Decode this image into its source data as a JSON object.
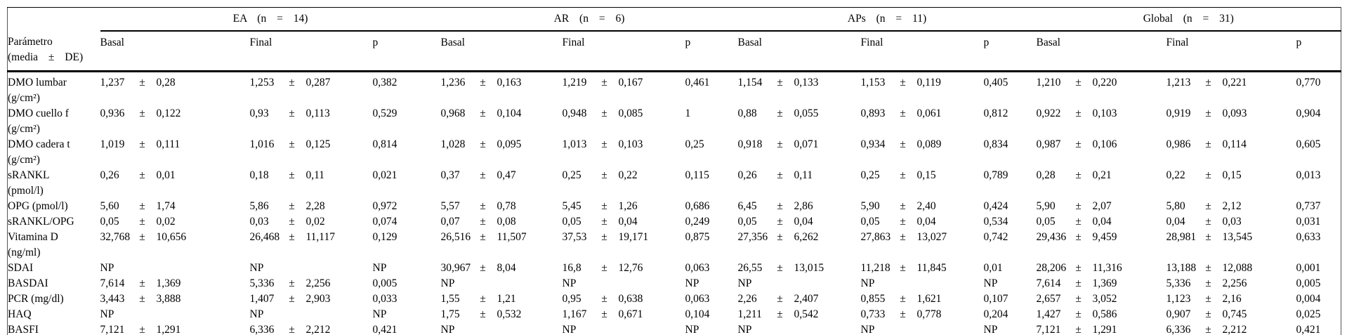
{
  "table": {
    "pm": "±",
    "param_header": {
      "line1": "Parámetro",
      "line2": "(media ± DE)"
    },
    "groups": [
      {
        "label": "EA (n = 14)"
      },
      {
        "label": "AR (n = 6)"
      },
      {
        "label": "APs (n = 11)"
      },
      {
        "label": "Global (n = 31)"
      }
    ],
    "sub_headers": [
      "Basal",
      "Final",
      "p"
    ],
    "rows": [
      {
        "param": "DMO lumbar",
        "unit": "(g/cm²)",
        "groups": [
          {
            "basal": [
              "1,237",
              "0,28"
            ],
            "final": [
              "1,253",
              "0,287"
            ],
            "p": "0,382"
          },
          {
            "basal": [
              "1,236",
              "0,163"
            ],
            "final": [
              "1,219",
              "0,167"
            ],
            "p": "0,461"
          },
          {
            "basal": [
              "1,154",
              "0,133"
            ],
            "final": [
              "1,153",
              "0,119"
            ],
            "p": "0,405"
          },
          {
            "basal": [
              "1,210",
              "0,220"
            ],
            "final": [
              "1,213",
              "0,221"
            ],
            "p": "0,770"
          }
        ]
      },
      {
        "param": "DMO cuello f",
        "unit": "(g/cm²)",
        "groups": [
          {
            "basal": [
              "0,936",
              "0,122"
            ],
            "final": [
              "0,93",
              "0,113"
            ],
            "p": "0,529"
          },
          {
            "basal": [
              "0,968",
              "0,104"
            ],
            "final": [
              "0,948",
              "0,085"
            ],
            "p": "1"
          },
          {
            "basal": [
              "0,88",
              "0,055"
            ],
            "final": [
              "0,893",
              "0,061"
            ],
            "p": "0,812"
          },
          {
            "basal": [
              "0,922",
              "0,103"
            ],
            "final": [
              "0,919",
              "0,093"
            ],
            "p": "0,904"
          }
        ]
      },
      {
        "param": "DMO cadera t",
        "unit": "(g/cm²)",
        "groups": [
          {
            "basal": [
              "1,019",
              "0,111"
            ],
            "final": [
              "1,016",
              "0,125"
            ],
            "p": "0,814"
          },
          {
            "basal": [
              "1,028",
              "0,095"
            ],
            "final": [
              "1,013",
              "0,103"
            ],
            "p": "0,25"
          },
          {
            "basal": [
              "0,918",
              "0,071"
            ],
            "final": [
              "0,934",
              "0,089"
            ],
            "p": "0,834"
          },
          {
            "basal": [
              "0,987",
              "0,106"
            ],
            "final": [
              "0,986",
              "0,114"
            ],
            "p": "0,605"
          }
        ]
      },
      {
        "param": "sRANKL",
        "unit": "(pmol/l)",
        "groups": [
          {
            "basal": [
              "0,26",
              "0,01"
            ],
            "final": [
              "0,18",
              "0,11"
            ],
            "p": "0,021"
          },
          {
            "basal": [
              "0,37",
              "0,47"
            ],
            "final": [
              "0,25",
              "0,22"
            ],
            "p": "0,115"
          },
          {
            "basal": [
              "0,26",
              "0,11"
            ],
            "final": [
              "0,25",
              "0,15"
            ],
            "p": "0,789"
          },
          {
            "basal": [
              "0,28",
              "0,21"
            ],
            "final": [
              "0,22",
              "0,15"
            ],
            "p": "0,013"
          }
        ]
      },
      {
        "param": "OPG (pmol/l)",
        "unit": "",
        "groups": [
          {
            "basal": [
              "5,60",
              "1,74"
            ],
            "final": [
              "5,86",
              "2,28"
            ],
            "p": "0,972"
          },
          {
            "basal": [
              "5,57",
              "0,78"
            ],
            "final": [
              "5,45",
              "1,26"
            ],
            "p": "0,686"
          },
          {
            "basal": [
              "6,45",
              "2,86"
            ],
            "final": [
              "5,90",
              "2,40"
            ],
            "p": "0,424"
          },
          {
            "basal": [
              "5,90",
              "2,07"
            ],
            "final": [
              "5,80",
              "2,12"
            ],
            "p": "0,737"
          }
        ]
      },
      {
        "param": "sRANKL/OPG",
        "unit": "",
        "groups": [
          {
            "basal": [
              "0,05",
              "0,02"
            ],
            "final": [
              "0,03",
              "0,02"
            ],
            "p": "0,074"
          },
          {
            "basal": [
              "0,07",
              "0,08"
            ],
            "final": [
              "0,05",
              "0,04"
            ],
            "p": "0,249"
          },
          {
            "basal": [
              "0,05",
              "0,04"
            ],
            "final": [
              "0,05",
              "0,04"
            ],
            "p": "0,534"
          },
          {
            "basal": [
              "0,05",
              "0,04"
            ],
            "final": [
              "0,04",
              "0,03"
            ],
            "p": "0,031"
          }
        ]
      },
      {
        "param": "Vitamina D",
        "unit": "(ng/ml)",
        "groups": [
          {
            "basal": [
              "32,768",
              "10,656"
            ],
            "final": [
              "26,468",
              "11,117"
            ],
            "p": "0,129"
          },
          {
            "basal": [
              "26,516",
              "11,507"
            ],
            "final": [
              "37,53",
              "19,171"
            ],
            "p": "0,875"
          },
          {
            "basal": [
              "27,356",
              "6,262"
            ],
            "final": [
              "27,863",
              "13,027"
            ],
            "p": "0,742"
          },
          {
            "basal": [
              "29,436",
              "9,459"
            ],
            "final": [
              "28,981",
              "13,545"
            ],
            "p": "0,633"
          }
        ]
      },
      {
        "param": "SDAI",
        "unit": "",
        "groups": [
          {
            "basal": [
              "NP"
            ],
            "final": [
              "NP"
            ],
            "p": "NP"
          },
          {
            "basal": [
              "30,967",
              "8,04"
            ],
            "final": [
              "16,8",
              "12,76"
            ],
            "p": "0,063"
          },
          {
            "basal": [
              "26,55",
              "13,015"
            ],
            "final": [
              "11,218",
              "11,845"
            ],
            "p": "0,01"
          },
          {
            "basal": [
              "28,206",
              "11,316"
            ],
            "final": [
              "13,188",
              "12,088"
            ],
            "p": "0,001"
          }
        ]
      },
      {
        "param": "BASDAI",
        "unit": "",
        "groups": [
          {
            "basal": [
              "7,614",
              "1,369"
            ],
            "final": [
              "5,336",
              "2,256"
            ],
            "p": "0,005"
          },
          {
            "basal": [
              "NP"
            ],
            "final": [
              "NP"
            ],
            "p": "NP"
          },
          {
            "basal": [
              "NP"
            ],
            "final": [
              "NP"
            ],
            "p": "NP"
          },
          {
            "basal": [
              "7,614",
              "1,369"
            ],
            "final": [
              "5,336",
              "2,256"
            ],
            "p": "0,005"
          }
        ]
      },
      {
        "param": "PCR (mg/dl)",
        "unit": "",
        "groups": [
          {
            "basal": [
              "3,443",
              "3,888"
            ],
            "final": [
              "1,407",
              "2,903"
            ],
            "p": "0,033"
          },
          {
            "basal": [
              "1,55",
              "1,21"
            ],
            "final": [
              "0,95",
              "0,638"
            ],
            "p": "0,063"
          },
          {
            "basal": [
              "2,26",
              "2,407"
            ],
            "final": [
              "0,855",
              "1,621"
            ],
            "p": "0,107"
          },
          {
            "basal": [
              "2,657",
              "3,052"
            ],
            "final": [
              "1,123",
              "2,16"
            ],
            "p": "0,004"
          }
        ]
      },
      {
        "param": "HAQ",
        "unit": "",
        "groups": [
          {
            "basal": [
              "NP"
            ],
            "final": [
              "NP"
            ],
            "p": "NP"
          },
          {
            "basal": [
              "1,75",
              "0,532"
            ],
            "final": [
              "1,167",
              "0,671"
            ],
            "p": "0,104"
          },
          {
            "basal": [
              "1,211",
              "0,542"
            ],
            "final": [
              "0,733",
              "0,778"
            ],
            "p": "0,204"
          },
          {
            "basal": [
              "1,427",
              "0,586"
            ],
            "final": [
              "0,907",
              "0,745"
            ],
            "p": "0,025"
          }
        ]
      },
      {
        "param": "BASFI",
        "unit": "",
        "groups": [
          {
            "basal": [
              "7,121",
              "1,291"
            ],
            "final": [
              "6,336",
              "2,212"
            ],
            "p": "0,421"
          },
          {
            "basal": [
              "NP"
            ],
            "final": [
              "NP"
            ],
            "p": "NP"
          },
          {
            "basal": [
              "NP"
            ],
            "final": [
              "NP"
            ],
            "p": "NP"
          },
          {
            "basal": [
              "7,121",
              "1,291"
            ],
            "final": [
              "6,336",
              "2,212"
            ],
            "p": "0,421"
          }
        ]
      }
    ]
  }
}
